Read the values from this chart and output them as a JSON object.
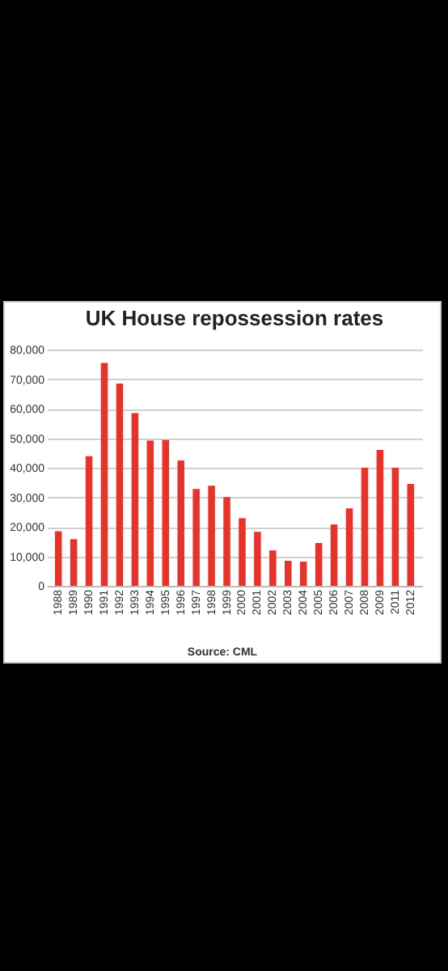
{
  "chart_data": {
    "type": "bar",
    "title": "UK House repossession rates",
    "categories": [
      "1988",
      "1989",
      "1990",
      "1991",
      "1992",
      "1993",
      "1994",
      "1995",
      "1996",
      "1997",
      "1998",
      "1999",
      "2000",
      "2001",
      "2002",
      "2003",
      "2004",
      "2005",
      "2006",
      "2007",
      "2008",
      "2009",
      "2011",
      "2012"
    ],
    "values": [
      18500,
      15800,
      43900,
      75500,
      68500,
      58500,
      49200,
      49400,
      42500,
      32800,
      33900,
      30100,
      22900,
      18300,
      12000,
      8500,
      8200,
      14500,
      20800,
      26200,
      40000,
      46000,
      40000,
      34500
    ],
    "color": "#e8322a",
    "ylim": [
      0,
      80000
    ],
    "yticks": [
      0,
      {
        "value": 10000,
        "label": "10,000"
      },
      {
        "value": 20000,
        "label": "20,000"
      },
      {
        "value": 30000,
        "label": "30,000"
      },
      {
        "value": 40000,
        "label": "40,000"
      },
      {
        "value": 50000,
        "label": "50,000"
      },
      {
        "value": 60000,
        "label": "60,000"
      },
      {
        "value": 70000,
        "label": "70,000"
      },
      {
        "value": 80000,
        "label": "80,000"
      }
    ],
    "grid": "y",
    "annotations": [
      "Source: CML"
    ]
  }
}
